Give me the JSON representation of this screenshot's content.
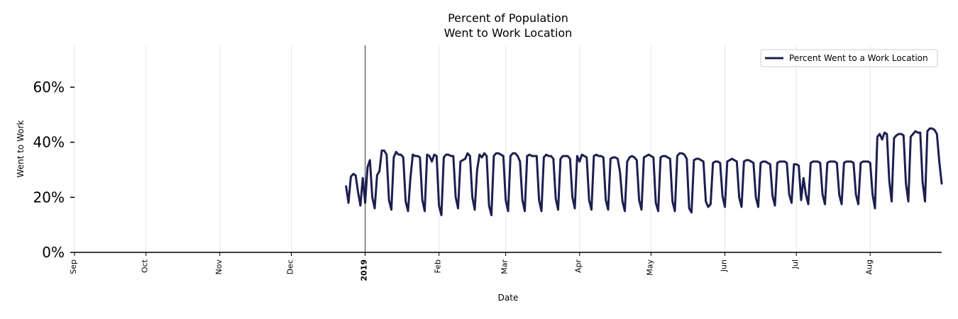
{
  "chart_data": {
    "type": "line",
    "title": [
      "Percent of Population",
      "Went to Work Location"
    ],
    "xlabel": "Date",
    "ylabel": "Went to Work",
    "ylim": [
      0,
      75
    ],
    "yticks": [
      {
        "value": 0,
        "label": "0%"
      },
      {
        "value": 20,
        "label": "20%"
      },
      {
        "value": 40,
        "label": "40%"
      },
      {
        "value": 60,
        "label": "60%"
      }
    ],
    "xlim_days": [
      0,
      364
    ],
    "xticks": [
      {
        "day": 0,
        "label": "Sep",
        "bold": false
      },
      {
        "day": 30,
        "label": "Oct",
        "bold": false
      },
      {
        "day": 61,
        "label": "Nov",
        "bold": false
      },
      {
        "day": 91,
        "label": "Dec",
        "bold": false
      },
      {
        "day": 122,
        "label": "2019",
        "bold": true
      },
      {
        "day": 153,
        "label": "Feb",
        "bold": false
      },
      {
        "day": 181,
        "label": "Mar",
        "bold": false
      },
      {
        "day": 212,
        "label": "Apr",
        "bold": false
      },
      {
        "day": 242,
        "label": "May",
        "bold": false
      },
      {
        "day": 273,
        "label": "Jun",
        "bold": false
      },
      {
        "day": 303,
        "label": "Jul",
        "bold": false
      },
      {
        "day": 334,
        "label": "Aug",
        "bold": false
      }
    ],
    "vline_day": 122,
    "grid": "vertical",
    "legend": {
      "position": "top-right",
      "entries": [
        "Percent Went to a Work Location"
      ]
    },
    "series": [
      {
        "name": "Percent Went to a Work Location",
        "color": "#1c1f4f",
        "points": [
          [
            114,
            24
          ],
          [
            115,
            18
          ],
          [
            116,
            27.5
          ],
          [
            117,
            28.5
          ],
          [
            118,
            28
          ],
          [
            119,
            22
          ],
          [
            120,
            17
          ],
          [
            121,
            27
          ],
          [
            122,
            18
          ],
          [
            123,
            31
          ],
          [
            124,
            33.5
          ],
          [
            125,
            20
          ],
          [
            126,
            16
          ],
          [
            127,
            28
          ],
          [
            128,
            29.5
          ],
          [
            129,
            37
          ],
          [
            130,
            37
          ],
          [
            131,
            35.5
          ],
          [
            132,
            19
          ],
          [
            133,
            15.5
          ],
          [
            134,
            34.5
          ],
          [
            135,
            36.5
          ],
          [
            136,
            35.5
          ],
          [
            137,
            35.5
          ],
          [
            138,
            34.5
          ],
          [
            139,
            18.5
          ],
          [
            140,
            15
          ],
          [
            141,
            27
          ],
          [
            142,
            35.5
          ],
          [
            143,
            35
          ],
          [
            144,
            35
          ],
          [
            145,
            34.5
          ],
          [
            146,
            19
          ],
          [
            147,
            15
          ],
          [
            148,
            35.5
          ],
          [
            149,
            35
          ],
          [
            150,
            33
          ],
          [
            151,
            35.5
          ],
          [
            152,
            35
          ],
          [
            153,
            17
          ],
          [
            154,
            13.5
          ],
          [
            155,
            34.5
          ],
          [
            156,
            35.5
          ],
          [
            157,
            35.5
          ],
          [
            158,
            35
          ],
          [
            159,
            35
          ],
          [
            160,
            20
          ],
          [
            161,
            16
          ],
          [
            162,
            33
          ],
          [
            163,
            33.5
          ],
          [
            164,
            34
          ],
          [
            165,
            36
          ],
          [
            166,
            35
          ],
          [
            167,
            20
          ],
          [
            168,
            15.5
          ],
          [
            169,
            30
          ],
          [
            170,
            35.5
          ],
          [
            171,
            34.5
          ],
          [
            172,
            36
          ],
          [
            173,
            35
          ],
          [
            174,
            17
          ],
          [
            175,
            13.5
          ],
          [
            176,
            35
          ],
          [
            177,
            36
          ],
          [
            178,
            36
          ],
          [
            179,
            35.5
          ],
          [
            180,
            35
          ],
          [
            181,
            19
          ],
          [
            182,
            15
          ],
          [
            183,
            35
          ],
          [
            184,
            36
          ],
          [
            185,
            36
          ],
          [
            186,
            35
          ],
          [
            187,
            33
          ],
          [
            188,
            19
          ],
          [
            189,
            15
          ],
          [
            190,
            35
          ],
          [
            191,
            35.5
          ],
          [
            192,
            35
          ],
          [
            193,
            35
          ],
          [
            194,
            35
          ],
          [
            195,
            19
          ],
          [
            196,
            15
          ],
          [
            197,
            34.5
          ],
          [
            198,
            35.5
          ],
          [
            199,
            35
          ],
          [
            200,
            35
          ],
          [
            201,
            34
          ],
          [
            202,
            19.5
          ],
          [
            203,
            15.5
          ],
          [
            204,
            34
          ],
          [
            205,
            35
          ],
          [
            206,
            35
          ],
          [
            207,
            35
          ],
          [
            208,
            34
          ],
          [
            209,
            20
          ],
          [
            210,
            16
          ],
          [
            211,
            35
          ],
          [
            212,
            33
          ],
          [
            213,
            35.5
          ],
          [
            214,
            35
          ],
          [
            215,
            34.5
          ],
          [
            216,
            19
          ],
          [
            217,
            15.5
          ],
          [
            218,
            35
          ],
          [
            219,
            35.5
          ],
          [
            220,
            35
          ],
          [
            221,
            35
          ],
          [
            222,
            34.5
          ],
          [
            223,
            19
          ],
          [
            224,
            15.5
          ],
          [
            225,
            34
          ],
          [
            226,
            34.5
          ],
          [
            227,
            34.5
          ],
          [
            228,
            34
          ],
          [
            229,
            29
          ],
          [
            230,
            18.5
          ],
          [
            231,
            15
          ],
          [
            232,
            33
          ],
          [
            233,
            34.5
          ],
          [
            234,
            35
          ],
          [
            235,
            34.5
          ],
          [
            236,
            33.5
          ],
          [
            237,
            19
          ],
          [
            238,
            15.5
          ],
          [
            239,
            34.5
          ],
          [
            240,
            35
          ],
          [
            241,
            35.5
          ],
          [
            242,
            35
          ],
          [
            243,
            34.5
          ],
          [
            244,
            18
          ],
          [
            245,
            15
          ],
          [
            246,
            34.5
          ],
          [
            247,
            35
          ],
          [
            248,
            35
          ],
          [
            249,
            34.5
          ],
          [
            250,
            34
          ],
          [
            251,
            18.5
          ],
          [
            252,
            15
          ],
          [
            253,
            35
          ],
          [
            254,
            36
          ],
          [
            255,
            36
          ],
          [
            256,
            35.5
          ],
          [
            257,
            34
          ],
          [
            258,
            16
          ],
          [
            259,
            14.5
          ],
          [
            260,
            33.5
          ],
          [
            261,
            34
          ],
          [
            262,
            34
          ],
          [
            263,
            33.5
          ],
          [
            264,
            33
          ],
          [
            265,
            18.5
          ],
          [
            266,
            16.5
          ],
          [
            267,
            17.5
          ],
          [
            268,
            32.5
          ],
          [
            269,
            33
          ],
          [
            270,
            33
          ],
          [
            271,
            32.5
          ],
          [
            272,
            20.5
          ],
          [
            273,
            16.5
          ],
          [
            274,
            33
          ],
          [
            275,
            33.5
          ],
          [
            276,
            34
          ],
          [
            277,
            33.5
          ],
          [
            278,
            33
          ],
          [
            279,
            20
          ],
          [
            280,
            16.5
          ],
          [
            281,
            33
          ],
          [
            282,
            33.5
          ],
          [
            283,
            33.5
          ],
          [
            284,
            33
          ],
          [
            285,
            32.5
          ],
          [
            286,
            20
          ],
          [
            287,
            16.5
          ],
          [
            288,
            32.5
          ],
          [
            289,
            33
          ],
          [
            290,
            33
          ],
          [
            291,
            32.5
          ],
          [
            292,
            32
          ],
          [
            293,
            20.5
          ],
          [
            294,
            17
          ],
          [
            295,
            32.5
          ],
          [
            296,
            33
          ],
          [
            297,
            33
          ],
          [
            298,
            33
          ],
          [
            299,
            32.5
          ],
          [
            300,
            21
          ],
          [
            301,
            18
          ],
          [
            302,
            32
          ],
          [
            303,
            32
          ],
          [
            304,
            31.5
          ],
          [
            305,
            19
          ],
          [
            306,
            27
          ],
          [
            307,
            21
          ],
          [
            308,
            17.5
          ],
          [
            309,
            32.5
          ],
          [
            310,
            33
          ],
          [
            311,
            33
          ],
          [
            312,
            33
          ],
          [
            313,
            32.5
          ],
          [
            314,
            21
          ],
          [
            315,
            17.5
          ],
          [
            316,
            32.5
          ],
          [
            317,
            33
          ],
          [
            318,
            33
          ],
          [
            319,
            33
          ],
          [
            320,
            32.5
          ],
          [
            321,
            21
          ],
          [
            322,
            17.5
          ],
          [
            323,
            32.5
          ],
          [
            324,
            33
          ],
          [
            325,
            33
          ],
          [
            326,
            33
          ],
          [
            327,
            32.5
          ],
          [
            328,
            21
          ],
          [
            329,
            17.5
          ],
          [
            330,
            32.5
          ],
          [
            331,
            33
          ],
          [
            332,
            33
          ],
          [
            333,
            33
          ],
          [
            334,
            32.5
          ],
          [
            335,
            21
          ],
          [
            336,
            16
          ],
          [
            337,
            42
          ],
          [
            338,
            43
          ],
          [
            339,
            41
          ],
          [
            340,
            43.5
          ],
          [
            341,
            43
          ],
          [
            342,
            26
          ],
          [
            343,
            18.5
          ],
          [
            344,
            41.5
          ],
          [
            345,
            42.5
          ],
          [
            346,
            43
          ],
          [
            347,
            43
          ],
          [
            348,
            42.5
          ],
          [
            349,
            25
          ],
          [
            350,
            18.5
          ],
          [
            351,
            42
          ],
          [
            352,
            43
          ],
          [
            353,
            44
          ],
          [
            354,
            43.5
          ],
          [
            355,
            43.5
          ],
          [
            356,
            25.5
          ],
          [
            357,
            18.5
          ],
          [
            358,
            44
          ],
          [
            359,
            45
          ],
          [
            360,
            45
          ],
          [
            361,
            44.5
          ],
          [
            362,
            43
          ],
          [
            363,
            33
          ],
          [
            364,
            25
          ]
        ]
      }
    ]
  }
}
